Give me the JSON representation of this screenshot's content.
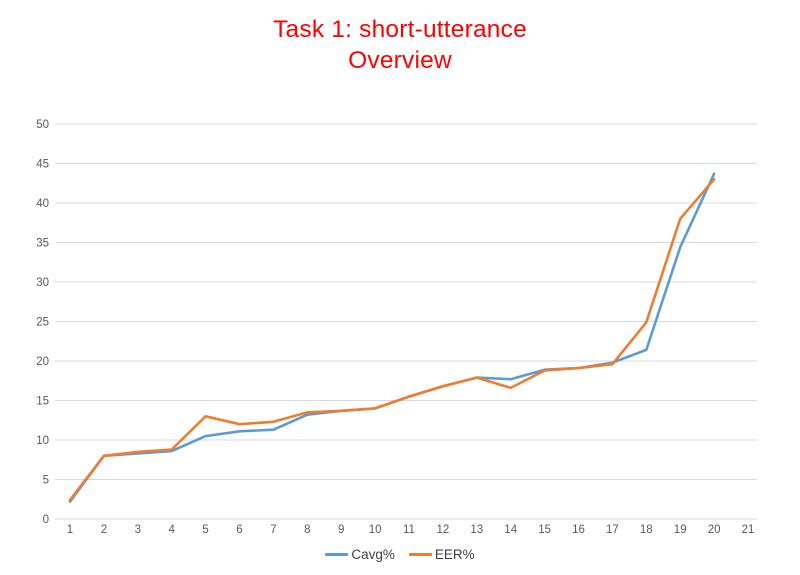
{
  "title": {
    "line1": "Task 1: short-utterance",
    "line2": "Overview",
    "color": "#FF0000"
  },
  "chart_data": {
    "type": "line",
    "x": [
      1,
      2,
      3,
      4,
      5,
      6,
      7,
      8,
      9,
      10,
      11,
      12,
      13,
      14,
      15,
      16,
      17,
      18,
      19,
      20
    ],
    "x_axis_ticks": [
      1,
      2,
      3,
      4,
      5,
      6,
      7,
      8,
      9,
      10,
      11,
      12,
      13,
      14,
      15,
      16,
      17,
      18,
      19,
      20,
      21
    ],
    "series": [
      {
        "name": "Cavg%",
        "color": "#5B9BD5",
        "values": [
          2.2,
          8.0,
          8.3,
          8.6,
          10.5,
          11.1,
          11.3,
          13.2,
          13.7,
          14.0,
          15.5,
          16.8,
          17.9,
          17.7,
          18.9,
          19.1,
          19.8,
          21.4,
          34.4,
          43.7
        ]
      },
      {
        "name": "EER%",
        "color": "#ED7D31",
        "values": [
          2.4,
          8.0,
          8.5,
          8.8,
          13.0,
          12.0,
          12.3,
          13.5,
          13.7,
          14.0,
          15.5,
          16.8,
          17.9,
          16.6,
          18.8,
          19.1,
          19.6,
          24.9,
          38.0,
          43.0
        ]
      }
    ],
    "title": "Task 1: short-utterance Overview",
    "xlabel": "",
    "ylabel": "",
    "ylim": [
      0,
      50
    ],
    "ytick_step": 5,
    "y_tick_labels": [
      "0",
      "5",
      "10",
      "15",
      "20",
      "25",
      "30",
      "35",
      "40",
      "45",
      "50"
    ],
    "grid": true,
    "legend_position": "bottom",
    "gridline_color": "#D9D9D9",
    "axis_label_color": "#595959"
  },
  "legend": {
    "items": [
      {
        "label": "Cavg%",
        "color": "#5B9BD5"
      },
      {
        "label": "EER%",
        "color": "#ED7D31"
      }
    ]
  }
}
